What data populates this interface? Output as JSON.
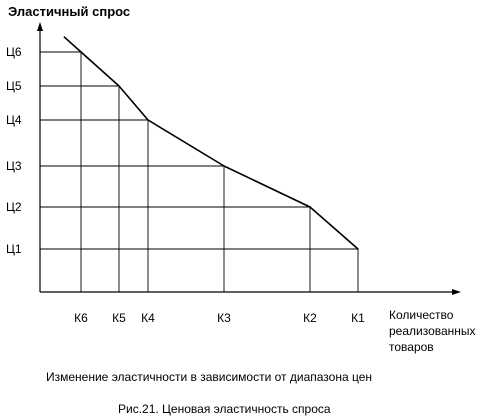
{
  "chart_data": {
    "type": "line",
    "ylabel": "Эластичный спрос",
    "xlabel": [
      "Количество",
      "реализованных",
      "товаров"
    ],
    "x_ticks": [
      "К6",
      "К5",
      "К4",
      "К3",
      "К2",
      "К1"
    ],
    "y_ticks": [
      "Ц1",
      "Ц2",
      "Ц3",
      "Ц4",
      "Ц5",
      "Ц6"
    ],
    "points": [
      {
        "x": "К1",
        "y": "Ц1"
      },
      {
        "x": "К2",
        "y": "Ц2"
      },
      {
        "x": "К3",
        "y": "Ц3"
      },
      {
        "x": "К4",
        "y": "Ц4"
      },
      {
        "x": "К5",
        "y": "Ц5"
      },
      {
        "x": "К6",
        "y": "Ц6"
      }
    ],
    "grid": "dropped-lines",
    "subtitle": "Изменение эластичности в зависимости от диапазона цен",
    "caption": "Рис.21. Ценовая эластичность спроса",
    "colors": {
      "line": "#000000",
      "background": "#ffffff"
    }
  }
}
